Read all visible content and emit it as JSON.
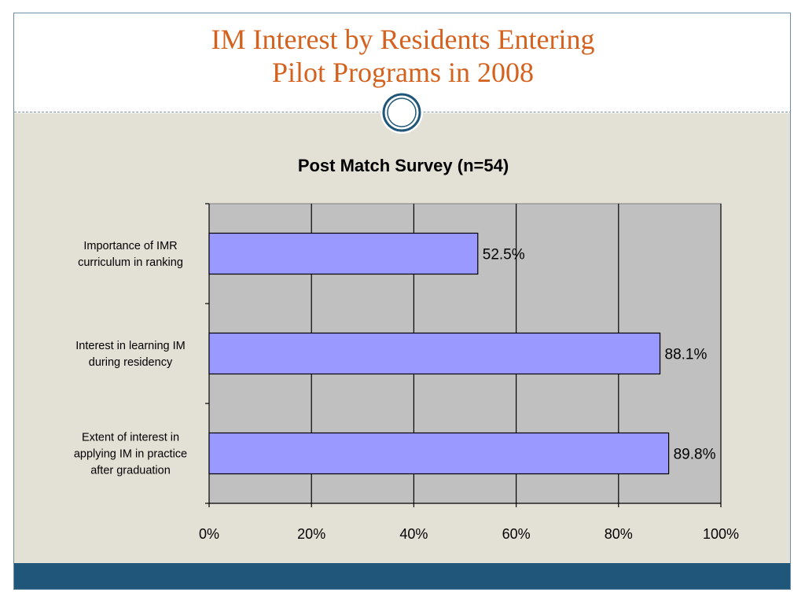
{
  "slide": {
    "title_line1": "IM Interest by Residents Entering",
    "title_line2": "Pilot Programs in 2008",
    "title_color": "#d4611d",
    "footer_color": "#1f5679",
    "content_bg": "#e3e0d6"
  },
  "chart_data": {
    "type": "bar",
    "orientation": "horizontal",
    "title": "Post Match Survey (n=54)",
    "categories": [
      [
        "Importance of IMR",
        "curriculum in ranking"
      ],
      [
        "Interest in learning IM",
        "during residency"
      ],
      [
        "Extent of interest in",
        "applying IM in practice",
        "after graduation"
      ]
    ],
    "values": [
      52.5,
      88.1,
      89.8
    ],
    "data_labels": [
      "52.5%",
      "88.1%",
      "89.8%"
    ],
    "xlim": [
      0,
      100
    ],
    "x_ticks": [
      0,
      20,
      40,
      60,
      80,
      100
    ],
    "x_tick_labels": [
      "0%",
      "20%",
      "40%",
      "60%",
      "80%",
      "100%"
    ],
    "bar_color": "#9999ff",
    "plot_bg": "#c0c0c0",
    "grid": true
  }
}
